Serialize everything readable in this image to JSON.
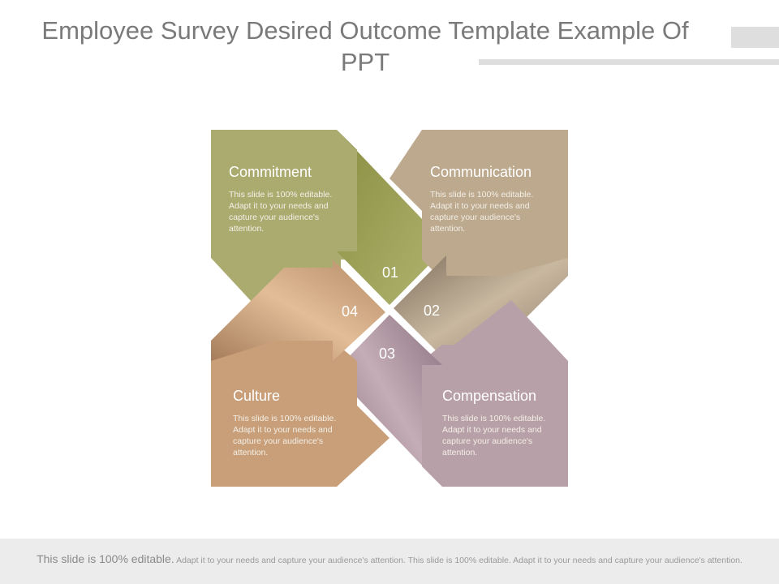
{
  "slide": {
    "title": "Employee Survey Desired Outcome Template Example Of PPT"
  },
  "quadrants": [
    {
      "heading": "Commitment",
      "body": "This slide is 100% editable. Adapt it to your needs and capture your audience's attention.",
      "number": "01",
      "color": "#abab70"
    },
    {
      "heading": "Communication",
      "body": "This slide is 100% editable. Adapt it to your needs and capture your audience's attention.",
      "number": "02",
      "color": "#bca98e"
    },
    {
      "heading": "Compensation",
      "body": "This slide is 100% editable. Adapt it to your needs and capture your audience's attention.",
      "number": "03",
      "color": "#b8a0a8"
    },
    {
      "heading": "Culture",
      "body": "This slide is 100% editable. Adapt it to your needs and capture your audience's attention.",
      "number": "04",
      "color": "#c89f79"
    }
  ],
  "footer": {
    "lead": "This slide is 100% editable.",
    "text": "Adapt it to your needs and capture your audience's attention. This slide is 100% editable. Adapt it to your needs and capture your audience's attention."
  }
}
